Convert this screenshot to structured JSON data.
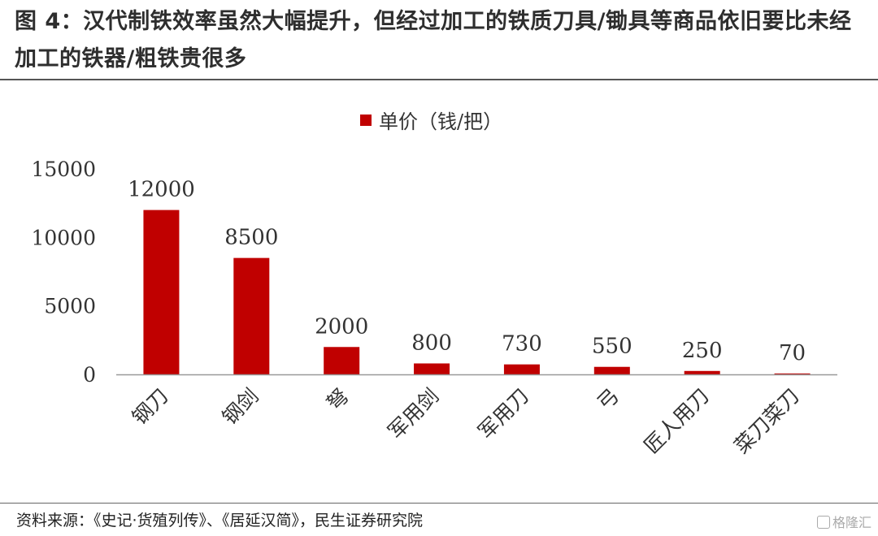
{
  "header": {
    "title": "图 4：汉代制铁效率虽然大幅提升，但经过加工的铁质刀具/锄具等商品依旧要比未经加工的铁器/粗铁贵很多"
  },
  "footer": {
    "source": "资料来源：《史记·货殖列传》、《居延汉简》，民生证券研究院",
    "watermark": "格隆汇"
  },
  "colors": {
    "bar": "#c00000",
    "axis": "#999999",
    "rule": "#555555"
  },
  "chart_data": {
    "type": "bar",
    "categories": [
      "钢刀",
      "钢剑",
      "弩",
      "军用剑",
      "军用刀",
      "弓",
      "匠人用刀",
      "菜刀菜刀"
    ],
    "series": [
      {
        "name": "单价（钱/把）",
        "values": [
          12000,
          8500,
          2000,
          800,
          730,
          550,
          250,
          70
        ]
      }
    ],
    "data_labels": [
      "12000",
      "8500",
      "2000",
      "800",
      "730",
      "550",
      "250",
      "70"
    ],
    "ylim": [
      0,
      15000
    ],
    "yticks": [
      0,
      5000,
      10000,
      15000
    ],
    "grid": false,
    "legend_position": "top-center",
    "xlabel": "",
    "ylabel": ""
  }
}
